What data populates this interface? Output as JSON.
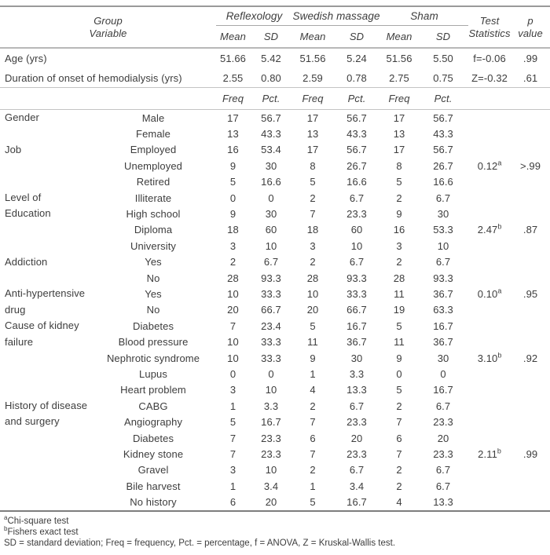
{
  "colors": {
    "text": "#3d3d3d",
    "rule_dark": "#7d7d7d",
    "rule_medium": "#9a9a9a",
    "rule_light": "#c4c4c4"
  },
  "table": {
    "header": {
      "group_variable": [
        "Group",
        "Variable"
      ],
      "groups": [
        "Reflexology",
        "Swedish massage",
        "Sham"
      ],
      "mean_label": "Mean",
      "sd_label": "SD",
      "freq_label": "Freq",
      "pct_label": "Pct.",
      "test_statistics": [
        "Test",
        "Statistics"
      ],
      "p_value": [
        "p",
        "value"
      ]
    },
    "scalar_rows": [
      {
        "label": "Age (yrs)",
        "values": [
          "51.66",
          "5.42",
          "51.56",
          "5.24",
          "51.56",
          "5.50"
        ],
        "test": "f=-0.06",
        "p": ".99"
      },
      {
        "label": "Duration of onset of hemodialysis (yrs)",
        "values": [
          "2.55",
          "0.80",
          "2.59",
          "0.78",
          "2.75",
          "0.75"
        ],
        "test": "Z=-0.32",
        "p": ".61"
      }
    ],
    "sections": [
      {
        "category": [
          "Gender"
        ],
        "rows": [
          {
            "label": "Male",
            "values": [
              "17",
              "56.7",
              "17",
              "56.7",
              "17",
              "56.7"
            ]
          },
          {
            "label": "Female",
            "values": [
              "13",
              "43.3",
              "13",
              "43.3",
              "13",
              "43.3"
            ]
          }
        ]
      },
      {
        "category": [
          "Job"
        ],
        "rows": [
          {
            "label": "Employed",
            "values": [
              "16",
              "53.4",
              "17",
              "56.7",
              "17",
              "56.7"
            ]
          },
          {
            "label": "Unemployed",
            "values": [
              "9",
              "30",
              "8",
              "26.7",
              "8",
              "26.7"
            ],
            "test": "0.12",
            "test_sup": "a",
            "p": ">.99"
          },
          {
            "label": "Retired",
            "values": [
              "5",
              "16.6",
              "5",
              "16.6",
              "5",
              "16.6"
            ]
          }
        ]
      },
      {
        "category": [
          "Level of",
          "Education"
        ],
        "rows": [
          {
            "label": "Illiterate",
            "values": [
              "0",
              "0",
              "2",
              "6.7",
              "2",
              "6.7"
            ]
          },
          {
            "label": "High school",
            "values": [
              "9",
              "30",
              "7",
              "23.3",
              "9",
              "30"
            ]
          },
          {
            "label": "Diploma",
            "values": [
              "18",
              "60",
              "18",
              "60",
              "16",
              "53.3"
            ],
            "test": "2.47",
            "test_sup": "b",
            "p": ".87"
          },
          {
            "label": "University",
            "values": [
              "3",
              "10",
              "3",
              "10",
              "3",
              "10"
            ]
          }
        ]
      },
      {
        "category": [
          "Addiction"
        ],
        "rows": [
          {
            "label": "Yes",
            "values": [
              "2",
              "6.7",
              "2",
              "6.7",
              "2",
              "6.7"
            ]
          },
          {
            "label": "No",
            "values": [
              "28",
              "93.3",
              "28",
              "93.3",
              "28",
              "93.3"
            ]
          }
        ]
      },
      {
        "category": [
          "Anti-hypertensive",
          "drug"
        ],
        "rows": [
          {
            "label": "Yes",
            "values": [
              "10",
              "33.3",
              "10",
              "33.3",
              "11",
              "36.7"
            ],
            "test": "0.10",
            "test_sup": "a",
            "p": ".95"
          },
          {
            "label": "No",
            "values": [
              "20",
              "66.7",
              "20",
              "66.7",
              "19",
              "63.3"
            ]
          }
        ]
      },
      {
        "category": [
          "Cause of kidney",
          "failure"
        ],
        "rows": [
          {
            "label": "Diabetes",
            "values": [
              "7",
              "23.4",
              "5",
              "16.7",
              "5",
              "16.7"
            ]
          },
          {
            "label": "Blood pressure",
            "values": [
              "10",
              "33.3",
              "11",
              "36.7",
              "11",
              "36.7"
            ]
          },
          {
            "label": "Nephrotic syndrome",
            "values": [
              "10",
              "33.3",
              "9",
              "30",
              "9",
              "30"
            ],
            "test": "3.10",
            "test_sup": "b",
            "p": ".92"
          },
          {
            "label": "Lupus",
            "values": [
              "0",
              "0",
              "1",
              "3.3",
              "0",
              "0"
            ]
          },
          {
            "label": "Heart problem",
            "values": [
              "3",
              "10",
              "4",
              "13.3",
              "5",
              "16.7"
            ]
          }
        ]
      },
      {
        "category": [
          "History of disease",
          "and surgery"
        ],
        "rows": [
          {
            "label": "CABG",
            "values": [
              "1",
              "3.3",
              "2",
              "6.7",
              "2",
              "6.7"
            ]
          },
          {
            "label": "Angiography",
            "values": [
              "5",
              "16.7",
              "7",
              "23.3",
              "7",
              "23.3"
            ]
          },
          {
            "label": "Diabetes",
            "values": [
              "7",
              "23.3",
              "6",
              "20",
              "6",
              "20"
            ]
          },
          {
            "label": "Kidney stone",
            "values": [
              "7",
              "23.3",
              "7",
              "23.3",
              "7",
              "23.3"
            ],
            "test": "2.11",
            "test_sup": "b",
            "p": ".99"
          },
          {
            "label": "Gravel",
            "values": [
              "3",
              "10",
              "2",
              "6.7",
              "2",
              "6.7"
            ]
          },
          {
            "label": "Bile harvest",
            "values": [
              "1",
              "3.4",
              "1",
              "3.4",
              "2",
              "6.7"
            ]
          },
          {
            "label": "No history",
            "values": [
              "6",
              "20",
              "5",
              "16.7",
              "4",
              "13.3"
            ]
          }
        ]
      }
    ],
    "footnotes": [
      {
        "sup": "a",
        "text": "Chi-square test"
      },
      {
        "sup": "b",
        "text": "Fishers exact test"
      },
      {
        "sup": "",
        "text": "SD = standard deviation; Freq = frequency, Pct. = percentage, f = ANOVA, Z = Kruskal-Wallis test."
      }
    ]
  }
}
